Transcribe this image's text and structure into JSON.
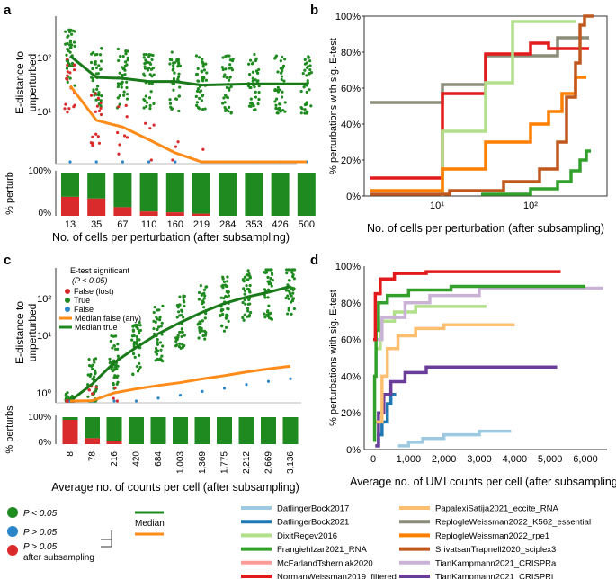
{
  "panel_labels": {
    "a": "a",
    "b": "b",
    "c": "c",
    "d": "d"
  },
  "colors": {
    "green": "#1f8a1f",
    "dark_green": "#1a7a1a",
    "orange": "#ff8c1a",
    "red": "#d92b2b",
    "blue": "#2a86c9",
    "grey": "#cccccc"
  },
  "chart_data": [
    {
      "id": "a",
      "type": "scatter",
      "ylabel": "E-distance\nto\nunperturbed",
      "ylabel_lines": [
        "E-distance to",
        "unperturbed"
      ],
      "xlabel": "No. of cells per perturbation (after subsampling)",
      "yscale": "log",
      "yticks": [
        "10¹",
        "10²"
      ],
      "categories": [
        "13",
        "35",
        "67",
        "110",
        "160",
        "219",
        "284",
        "353",
        "426",
        "500"
      ],
      "series": [
        {
          "kind": "median_true",
          "values": [
            125,
            50,
            48,
            42,
            42,
            36,
            37,
            38,
            38,
            38
          ]
        },
        {
          "kind": "median_false",
          "values": [
            35,
            8,
            6,
            3.5,
            2,
            1,
            1,
            1,
            1,
            1
          ]
        }
      ],
      "bars": {
        "ylabel": "% perturb",
        "yticks": [
          "0%",
          "100%"
        ],
        "sig_fraction": [
          0.56,
          0.6,
          0.8,
          0.9,
          0.92,
          0.95,
          1,
          1,
          1,
          1
        ]
      }
    },
    {
      "id": "b",
      "type": "line",
      "ylabel": "% perturbations with sig. E-test",
      "xlabel": "No. of cells per perturbation (after subsampling)",
      "xscale": "log",
      "xticks": [
        "10¹",
        "10²"
      ],
      "yticks": [
        "0%",
        "20%",
        "40%",
        "60%",
        "80%",
        "100%"
      ],
      "ylim": [
        0,
        100
      ]
    },
    {
      "id": "c",
      "type": "scatter",
      "ylabel_lines": [
        "E-distance to",
        "unperturbed"
      ],
      "xlabel": "Average no. of counts per cell (after subsampling)",
      "yscale": "log",
      "yticks": [
        "10⁰",
        "10¹",
        "10²"
      ],
      "categories": [
        "8",
        "78",
        "216",
        "420",
        "684",
        "1,003",
        "1,369",
        "1,775",
        "2,212",
        "2,669",
        "3,136"
      ],
      "series": [
        {
          "kind": "median_true",
          "values": [
            0.3,
            1.5,
            4,
            8,
            15,
            25,
            40,
            60,
            80,
            100,
            130
          ]
        },
        {
          "kind": "median_false",
          "values": [
            0.25,
            0.7,
            1,
            1.2,
            1.4,
            1.6,
            1.9,
            2.2,
            2.6,
            3,
            3.4
          ]
        }
      ],
      "bars": {
        "ylabel": "% perturbs",
        "yticks": [
          "0%",
          "100%"
        ],
        "sig_fraction": [
          0.1,
          0.78,
          0.9,
          1,
          1,
          1,
          1,
          1,
          1,
          1,
          1
        ]
      },
      "legend": {
        "title": "E-test significant",
        "subtitle": "(P < 0.05)",
        "items": [
          "False (lost)",
          "True",
          "False",
          "Median false (any)",
          "Median true"
        ]
      }
    },
    {
      "id": "d",
      "type": "line",
      "ylabel": "% perturbations with sig. E-test",
      "xlabel": "Average no. of UMI counts per cell (after subsampling)",
      "xticks": [
        "0",
        "1,000",
        "2,000",
        "3,000",
        "4,000",
        "5,000",
        "6,000"
      ],
      "yticks": [
        "0%",
        "20%",
        "40%",
        "60%",
        "80%",
        "100%"
      ],
      "ylim": [
        0,
        100
      ],
      "xlim": [
        0,
        6500
      ]
    }
  ],
  "bottom_legend": {
    "points": [
      "P < 0.05",
      "P > 0.05",
      "P > 0.05",
      "after subsampling"
    ],
    "median_label": "Median",
    "datasets": [
      {
        "name": "DatlingerBock2017",
        "color": "#9ecae1"
      },
      {
        "name": "DatlingerBock2021",
        "color": "#1f78b4"
      },
      {
        "name": "DixitRegev2016",
        "color": "#b2df8a"
      },
      {
        "name": "FrangiehIzar2021_RNA",
        "color": "#33a02c"
      },
      {
        "name": "McFarlandTsherniak2020",
        "color": "#fb9a99"
      },
      {
        "name": "NormanWeissman2019_filtered",
        "color": "#e31a1c"
      },
      {
        "name": "PapalexiSatija2021_eccite_RNA",
        "color": "#fdbf6f"
      },
      {
        "name": "ReplogleWeissman2022_K562_essential",
        "color": "#8c8c7a"
      },
      {
        "name": "ReplogleWeissman2022_rpe1",
        "color": "#ff7f00"
      },
      {
        "name": "SrivatsanTrapnell2020_sciplex3",
        "color": "#c0581e"
      },
      {
        "name": "TianKampmann2021_CRISPRa",
        "color": "#cab2d6"
      },
      {
        "name": "TianKampmann2021_CRISPRi",
        "color": "#6a3d9a"
      }
    ]
  }
}
